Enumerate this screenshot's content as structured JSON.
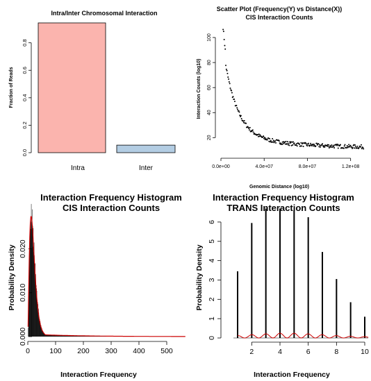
{
  "chart_data": [
    {
      "type": "bar",
      "title": "Intra/Inter Chromosomal Interaction",
      "xlabel": "",
      "ylabel": "Fraction of Reads",
      "categories": [
        "Intra",
        "Inter"
      ],
      "values": [
        0.945,
        0.055
      ],
      "colors": [
        "#FBB4AE",
        "#B3CDE3"
      ],
      "ylim": [
        0,
        0.95
      ],
      "yticks": [
        "0.0",
        "0.2",
        "0.4",
        "0.6",
        "0.8"
      ],
      "grid": false
    },
    {
      "type": "scatter",
      "title": "Scatter Plot (Frequency(Y) vs Distance(X))",
      "subtitle": "CIS Interaction Counts",
      "xlabel": "Genomic Distance (log10)",
      "ylabel": "Interaction Counts (log10)",
      "xlim": [
        0,
        135000000
      ],
      "ylim": [
        8,
        110
      ],
      "xticks": [
        0,
        40000000,
        80000000,
        120000000
      ],
      "xtick_labels": [
        "0.0e+00",
        "4.0e+07",
        "8.0e+07",
        "1.2e+08"
      ],
      "yticks": [
        "20",
        "40",
        "60",
        "80",
        "100"
      ],
      "curve": {
        "a": 70,
        "b": 11.5,
        "scale": 12000000,
        "noise": 1.6
      },
      "grid": false
    },
    {
      "type": "bar",
      "title": "Interaction Frequency Histogram",
      "subtitle": "CIS Interaction Counts",
      "xlabel": "Interaction Frequency",
      "ylabel": "Probability Density",
      "xlim": [
        0,
        570
      ],
      "ylim": [
        0,
        0.028
      ],
      "xticks": [
        "0",
        "100",
        "200",
        "300",
        "400",
        "500"
      ],
      "yticks": [
        "0.000",
        "0.010",
        "0.020"
      ],
      "peak": {
        "x": 12,
        "density": 0.0275
      },
      "density_color": "#cc0000",
      "grid": false
    },
    {
      "type": "bar",
      "title": "Interaction Frequency Histogram",
      "subtitle": "TRANS Interaction Counts",
      "xlabel": "Interaction Frequency",
      "ylabel": "Probability Density",
      "categories": [
        1,
        2,
        3,
        4,
        5,
        6,
        7,
        8,
        9,
        10
      ],
      "values": [
        3.45,
        5.95,
        6.7,
        6.7,
        6.6,
        6.25,
        4.45,
        3.05,
        1.85,
        1.1
      ],
      "xticks": [
        "2",
        "4",
        "6",
        "8",
        "10"
      ],
      "yticks": [
        "0",
        "1",
        "2",
        "3",
        "4",
        "5",
        "6"
      ],
      "ylim": [
        0,
        6.5
      ],
      "density_color": "#cc0000",
      "grid": false
    }
  ]
}
